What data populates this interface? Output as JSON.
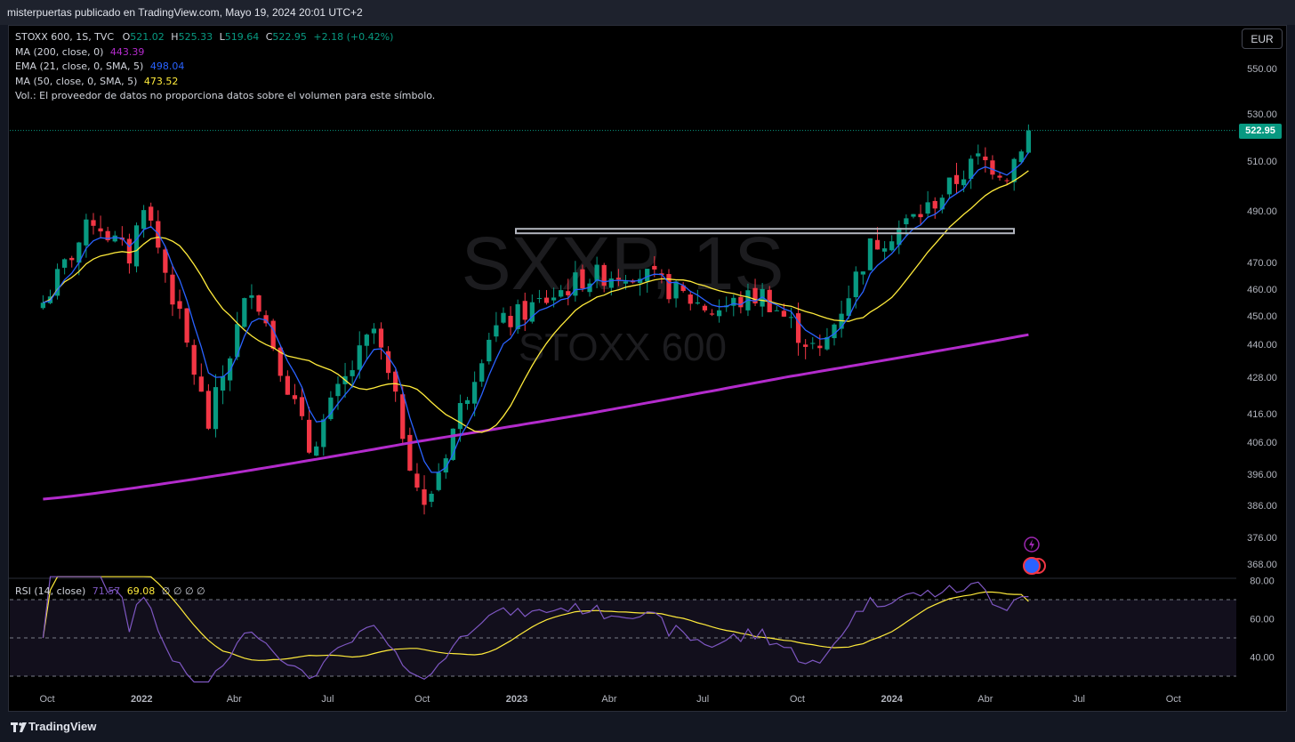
{
  "header": {
    "caption": "misterpuertas publicado en TradingView.com, Mayo 19, 2024 20:01 UTC+2"
  },
  "legend": {
    "symbol": "STOXX 600, 1S, TVC",
    "o_label": "O",
    "o_value": "521.02",
    "h_label": "H",
    "h_value": "525.33",
    "l_label": "L",
    "l_value": "519.64",
    "c_label": "C",
    "c_value": "522.95",
    "change": "+2.18 (+0.42%)",
    "ma200_label": "MA (200, close, 0)",
    "ma200_value": "443.39",
    "ema21_label": "EMA (21, close, 0, SMA, 5)",
    "ema21_value": "498.04",
    "ma50_label": "MA (50, close, 0, SMA, 5)",
    "ma50_value": "473.52",
    "vol_note": "Vol.: El proveedor de datos no proporciona datos sobre el volumen para este símbolo."
  },
  "currency": "EUR",
  "price_tag": "522.95",
  "watermark": {
    "ticker": "SXXP, 1S",
    "name": "STOXX 600"
  },
  "rsi_legend": {
    "label": "RSI (14, close)",
    "rsi_value": "71.57",
    "ma_value": "69.08",
    "extra": "∅ ∅ ∅ ∅"
  },
  "footer": {
    "brand": "TradingView"
  },
  "colors": {
    "up": "#089981",
    "down": "#f23645",
    "ma200": "#b32bcc",
    "ema21": "#2962ff",
    "ma50": "#ffeb3b",
    "rsi": "#7e57c2",
    "rsi_ma": "#ffeb3b",
    "level": "#b2b5be"
  },
  "chart_data": [
    {
      "type": "candlestick",
      "title": "STOXX 600, 1S, TVC",
      "y_ticks": [
        "550.00",
        "530.00",
        "510.00",
        "490.00",
        "470.00",
        "460.00",
        "450.00",
        "440.00",
        "428.00",
        "416.00",
        "406.00",
        "396.00",
        "386.00",
        "376.00",
        "368.00"
      ],
      "x_ticks": [
        "Oct",
        "2022",
        "Abr",
        "Jul",
        "Oct",
        "2023",
        "Abr",
        "Jul",
        "Oct",
        "2024",
        "Abr",
        "Jul",
        "Oct"
      ],
      "last_price": 522.95,
      "horizontal_level": 482,
      "ohlc_anchors": [
        {
          "date": "2021-09-27",
          "close": 455
        },
        {
          "date": "2021-11-15",
          "close": 487
        },
        {
          "date": "2021-12-20",
          "close": 472
        },
        {
          "date": "2022-01-03",
          "close": 494
        },
        {
          "date": "2022-03-07",
          "close": 412
        },
        {
          "date": "2022-04-18",
          "close": 462
        },
        {
          "date": "2022-06-13",
          "close": 404
        },
        {
          "date": "2022-08-15",
          "close": 445
        },
        {
          "date": "2022-10-03",
          "close": 384
        },
        {
          "date": "2022-12-05",
          "close": 444
        },
        {
          "date": "2023-03-06",
          "close": 464
        },
        {
          "date": "2023-04-24",
          "close": 467
        },
        {
          "date": "2023-07-10",
          "close": 452
        },
        {
          "date": "2023-08-28",
          "close": 458
        },
        {
          "date": "2023-10-23",
          "close": 436
        },
        {
          "date": "2023-12-11",
          "close": 476
        },
        {
          "date": "2024-02-05",
          "close": 491
        },
        {
          "date": "2024-03-25",
          "close": 511
        },
        {
          "date": "2024-04-22",
          "close": 505
        },
        {
          "date": "2024-05-13",
          "close": 522.95
        }
      ],
      "ma200": {
        "start": 388,
        "end": 443.39
      },
      "ema21_last": 498.04,
      "ma50_last": 473.52
    },
    {
      "type": "line",
      "title": "RSI (14, close)",
      "y_ticks": [
        "80.00",
        "60.00",
        "40.00"
      ],
      "bands": [
        70,
        50,
        30
      ],
      "last_rsi": 71.57,
      "last_rsi_ma": 69.08
    }
  ]
}
